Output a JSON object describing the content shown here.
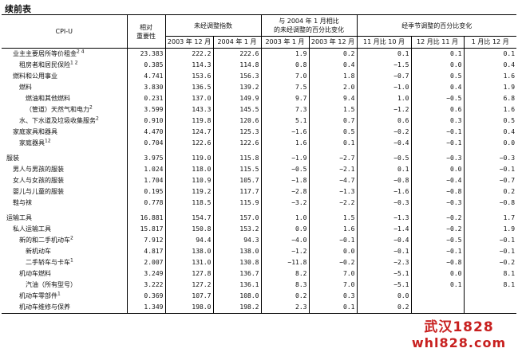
{
  "page_title": "续前表",
  "header": {
    "cpi_u": "CPI-U",
    "importance": "相对\n重要性",
    "unadjusted": "未经调整指数",
    "compare_2004": "与 2004 年 1 月相比\n的未经调整的百分比变化",
    "seasonal": "经季节调整的百分比变化",
    "sub": [
      "2003 年 12 月",
      "2004 年 1 月",
      "2003 年 1 月",
      "2003 年 12 月",
      "11 月比 10 月",
      "12 月比 11 月",
      "1 月比 12 月"
    ]
  },
  "rows": [
    {
      "label": "业主主要居所等价租金",
      "sup": "2 4",
      "indent": 2,
      "imp": "23.383",
      "v": [
        "222.2",
        "222.6",
        "1.9",
        "0.2",
        "0.1",
        "0.1",
        "0.1"
      ]
    },
    {
      "label": "租房者和居民保险",
      "sup": "1 2",
      "indent": 3,
      "imp": "0.385",
      "v": [
        "114.3",
        "114.8",
        "0.8",
        "0.4",
        "−1.5",
        "0.0",
        "0.4"
      ]
    },
    {
      "label": "燃料和公用事业",
      "sup": "",
      "indent": 2,
      "imp": "4.741",
      "v": [
        "153.6",
        "156.3",
        "7.0",
        "1.8",
        "−0.7",
        "0.5",
        "1.6"
      ]
    },
    {
      "label": "燃料",
      "sup": "",
      "indent": 3,
      "imp": "3.830",
      "v": [
        "136.5",
        "139.2",
        "7.5",
        "2.0",
        "−1.0",
        "0.4",
        "1.9"
      ]
    },
    {
      "label": "燃油和其他燃料",
      "sup": "",
      "indent": 4,
      "imp": "0.231",
      "v": [
        "137.0",
        "149.9",
        "9.7",
        "9.4",
        "1.0",
        "−0.5",
        "6.8"
      ]
    },
    {
      "label": "（管道）天然气和电力",
      "sup": "2",
      "indent": 4,
      "imp": "3.599",
      "v": [
        "143.3",
        "145.5",
        "7.3",
        "1.5",
        "−1.2",
        "0.6",
        "1.6"
      ]
    },
    {
      "label": "水、下水道及垃圾收集服务",
      "sup": "2",
      "indent": 3,
      "imp": "0.910",
      "v": [
        "119.8",
        "120.6",
        "5.1",
        "0.7",
        "0.6",
        "0.3",
        "0.5"
      ]
    },
    {
      "label": "家庭家具和器具",
      "sup": "",
      "indent": 2,
      "imp": "4.470",
      "v": [
        "124.7",
        "125.3",
        "−1.6",
        "0.5",
        "−0.2",
        "−0.1",
        "0.4"
      ]
    },
    {
      "label": "家庭器具",
      "sup": "12",
      "indent": 3,
      "imp": "0.704",
      "v": [
        "122.6",
        "122.6",
        "1.6",
        "0.1",
        "−0.4",
        "−0.1",
        "0.0"
      ]
    },
    {
      "gap": true
    },
    {
      "label": "服装",
      "sup": "",
      "indent": 1,
      "imp": "3.975",
      "v": [
        "119.0",
        "115.8",
        "−1.9",
        "−2.7",
        "−0.5",
        "−0.3",
        "−0.3"
      ]
    },
    {
      "label": "男人与男孩的服装",
      "sup": "",
      "indent": 2,
      "imp": "1.024",
      "v": [
        "118.0",
        "115.5",
        "−0.5",
        "−2.1",
        "0.1",
        "0.0",
        "−0.1"
      ]
    },
    {
      "label": "女人与女孩的服装",
      "sup": "",
      "indent": 2,
      "imp": "1.704",
      "v": [
        "110.9",
        "105.7",
        "−1.8",
        "−4.7",
        "−0.8",
        "−0.4",
        "−0.7"
      ]
    },
    {
      "label": "婴儿与儿童的服装",
      "sup": "",
      "indent": 2,
      "imp": "0.195",
      "v": [
        "119.2",
        "117.7",
        "−2.8",
        "−1.3",
        "−1.6",
        "−0.8",
        "0.2"
      ]
    },
    {
      "label": "鞋与袜",
      "sup": "",
      "indent": 2,
      "imp": "0.778",
      "v": [
        "118.5",
        "115.9",
        "−3.2",
        "−2.2",
        "−0.3",
        "−0.3",
        "−0.8"
      ]
    },
    {
      "gap": true
    },
    {
      "label": "运输工具",
      "sup": "",
      "indent": 1,
      "imp": "16.881",
      "v": [
        "154.7",
        "157.0",
        "1.0",
        "1.5",
        "−1.3",
        "−0.2",
        "1.7"
      ]
    },
    {
      "label": "私人运输工具",
      "sup": "",
      "indent": 2,
      "imp": "15.817",
      "v": [
        "150.8",
        "153.2",
        "0.9",
        "1.6",
        "−1.4",
        "−0.2",
        "1.9"
      ]
    },
    {
      "label": "新的和二手机动车",
      "sup": "2",
      "indent": 3,
      "imp": "7.912",
      "v": [
        "94.4",
        "94.3",
        "−4.0",
        "−0.1",
        "−0.4",
        "−0.5",
        "−0.1"
      ]
    },
    {
      "label": "新机动车",
      "sup": "",
      "indent": 4,
      "imp": "4.817",
      "v": [
        "138.0",
        "138.0",
        "−1.2",
        "0.0",
        "−0.1",
        "−0.1",
        "−0.1"
      ]
    },
    {
      "label": "二手轿车与卡车",
      "sup": "1",
      "indent": 4,
      "imp": "2.007",
      "v": [
        "131.0",
        "130.8",
        "−11.8",
        "−0.2",
        "−2.3",
        "−0.8",
        "−0.2"
      ]
    },
    {
      "label": "机动车燃料",
      "sup": "",
      "indent": 3,
      "imp": "3.249",
      "v": [
        "127.8",
        "136.7",
        "8.2",
        "7.0",
        "−5.1",
        "0.0",
        "8.1"
      ]
    },
    {
      "label": "汽油（所有型号）",
      "sup": "",
      "indent": 4,
      "imp": "3.222",
      "v": [
        "127.2",
        "136.1",
        "8.3",
        "7.0",
        "−5.1",
        "0.1",
        "8.1"
      ]
    },
    {
      "label": "机动车零部件",
      "sup": "1",
      "indent": 3,
      "imp": "0.369",
      "v": [
        "107.7",
        "108.0",
        "0.2",
        "0.3",
        "0.0",
        "",
        ""
      ]
    },
    {
      "label": "机动车维修与保养",
      "sup": "",
      "indent": 3,
      "imp": "1.349",
      "v": [
        "198.0",
        "198.2",
        "2.3",
        "0.1",
        "0.2",
        "",
        ""
      ]
    }
  ],
  "watermark": {
    "line1": "武汉1828",
    "line2": "whl828.com"
  }
}
